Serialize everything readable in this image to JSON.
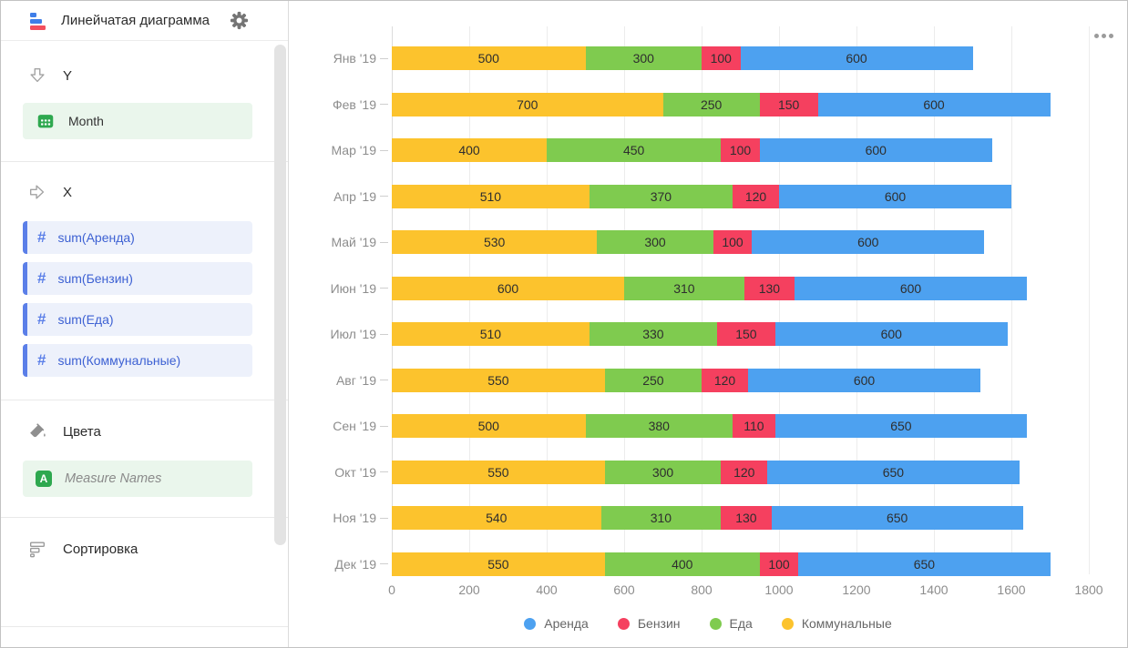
{
  "header": {
    "title": "Линейчатая диаграмма"
  },
  "sidebar": {
    "sections": {
      "y": {
        "label": "Y",
        "fields": [
          {
            "name": "Month",
            "icon": "calendar-icon"
          }
        ]
      },
      "x": {
        "label": "X",
        "fields": [
          "sum(Аренда)",
          "sum(Бензин)",
          "sum(Еда)",
          "sum(Коммунальные)"
        ]
      },
      "colors": {
        "label": "Цвета",
        "fields": [
          {
            "name": "Measure Names",
            "icon": "letter-a-icon"
          }
        ]
      },
      "sorting": {
        "label": "Сортировка"
      }
    }
  },
  "theme": {
    "accent_blue": "#5b7fe8",
    "accent_green": "#2ea84f",
    "pill_text_blue": "#3d61d3"
  },
  "chart_data": {
    "type": "bar",
    "orientation": "horizontal",
    "stacked": true,
    "grid": true,
    "legend_position": "bottom",
    "categories": [
      "Янв '19",
      "Фев '19",
      "Мар '19",
      "Апр '19",
      "Май '19",
      "Июн '19",
      "Июл '19",
      "Авг '19",
      "Сен '19",
      "Окт '19",
      "Ноя '19",
      "Дек '19"
    ],
    "series": [
      {
        "name": "Коммунальные",
        "color": "#fcc32d",
        "values": [
          500,
          700,
          400,
          510,
          530,
          600,
          510,
          550,
          500,
          550,
          540,
          550
        ]
      },
      {
        "name": "Еда",
        "color": "#7fcb4f",
        "values": [
          300,
          250,
          450,
          370,
          300,
          310,
          330,
          250,
          380,
          300,
          310,
          400
        ]
      },
      {
        "name": "Бензин",
        "color": "#f5405f",
        "values": [
          100,
          150,
          100,
          120,
          100,
          130,
          150,
          120,
          110,
          120,
          130,
          100
        ]
      },
      {
        "name": "Аренда",
        "color": "#4da1f0",
        "values": [
          600,
          600,
          600,
          600,
          600,
          600,
          600,
          600,
          650,
          650,
          650,
          650
        ]
      }
    ],
    "legend": [
      {
        "label": "Аренда",
        "color": "#4da1f0"
      },
      {
        "label": "Бензин",
        "color": "#f5405f"
      },
      {
        "label": "Еда",
        "color": "#7fcb4f"
      },
      {
        "label": "Коммунальные",
        "color": "#fcc32d"
      }
    ],
    "xlim": [
      0,
      1800
    ],
    "x_ticks": [
      0,
      200,
      400,
      600,
      800,
      1000,
      1200,
      1400,
      1600,
      1800
    ]
  }
}
